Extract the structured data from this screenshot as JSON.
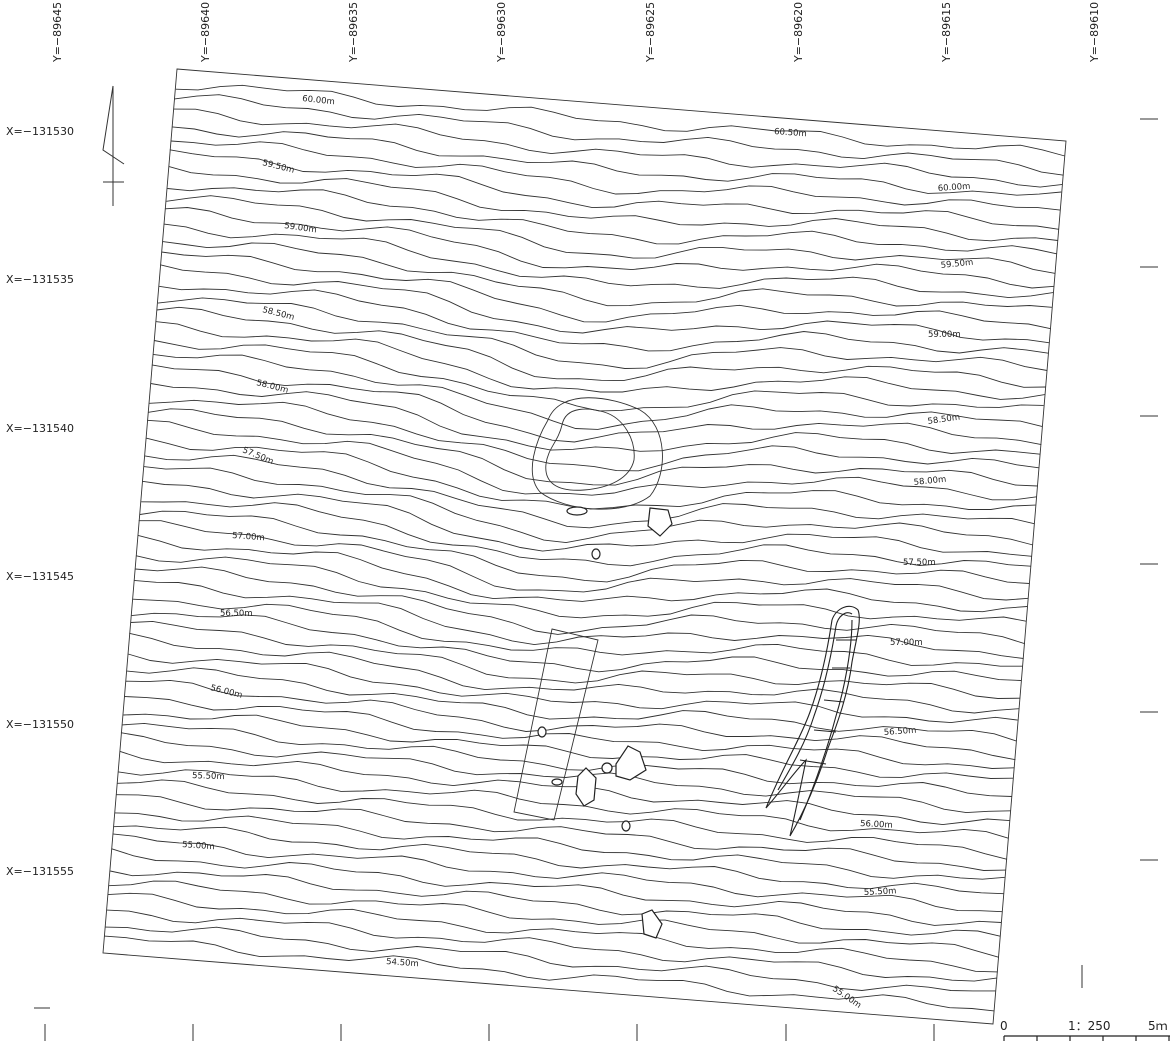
{
  "map": {
    "y_labels": [
      "Y=−89645",
      "Y=−89640",
      "Y=−89635",
      "Y=−89630",
      "Y=−89625",
      "Y=−89620",
      "Y=−89615",
      "Y=−89610"
    ],
    "x_labels": [
      "X=−131530",
      "X=−131535",
      "X=−131540",
      "X=−131545",
      "X=−131550",
      "X=−131555"
    ],
    "contour_labels": [
      "60.00m",
      "60.50m",
      "59.50m",
      "60.00m",
      "59.00m",
      "59.50m",
      "58.50m",
      "59.00m",
      "58.00m",
      "58.50m",
      "57.50m",
      "58.00m",
      "57.00m",
      "57.50m",
      "56.50m",
      "57.00m",
      "56.00m",
      "56.50m",
      "55.50m",
      "56.00m",
      "55.00m",
      "55.50m",
      "54.50m",
      "55.00m"
    ],
    "scale": {
      "zero": "0",
      "ratio": "1：250",
      "length": "5ｍ"
    }
  }
}
